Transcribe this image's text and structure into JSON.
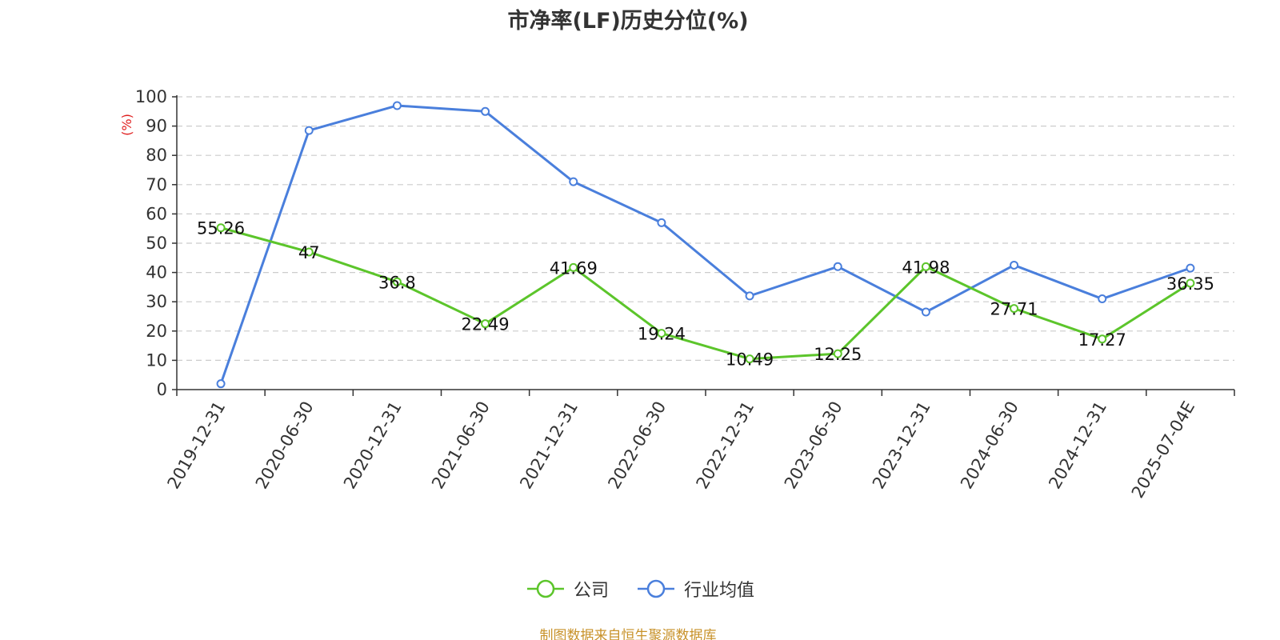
{
  "chart_data": {
    "type": "line",
    "title": "市净率(LF)历史分位(%)",
    "ylabel": "(%)",
    "xlabel": "",
    "ylim": [
      0,
      100
    ],
    "yticks": [
      0,
      10,
      20,
      30,
      40,
      50,
      60,
      70,
      80,
      90,
      100
    ],
    "grid": true,
    "legend_position": "bottom",
    "categories": [
      "2019-12-31",
      "2020-06-30",
      "2020-12-31",
      "2021-06-30",
      "2021-12-31",
      "2022-06-30",
      "2022-12-31",
      "2023-06-30",
      "2023-12-31",
      "2024-06-30",
      "2024-12-31",
      "2025-07-04E"
    ],
    "series": [
      {
        "name": "公司",
        "color": "#5cc52b",
        "values": [
          55.26,
          47,
          36.8,
          22.49,
          41.69,
          19.24,
          10.49,
          12.25,
          41.98,
          27.71,
          17.27,
          36.35
        ],
        "labels": [
          "55.26",
          "47",
          "36.8",
          "22.49",
          "41.69",
          "19.24",
          "10.49",
          "12.25",
          "41.98",
          "27.71",
          "17.27",
          "36.35"
        ]
      },
      {
        "name": "行业均值",
        "color": "#4a7fdc",
        "values": [
          2,
          88.5,
          97,
          95,
          71,
          57,
          32,
          42,
          26.5,
          42.5,
          31,
          41.5
        ]
      }
    ]
  },
  "source": "制图数据来自恒生聚源数据库"
}
